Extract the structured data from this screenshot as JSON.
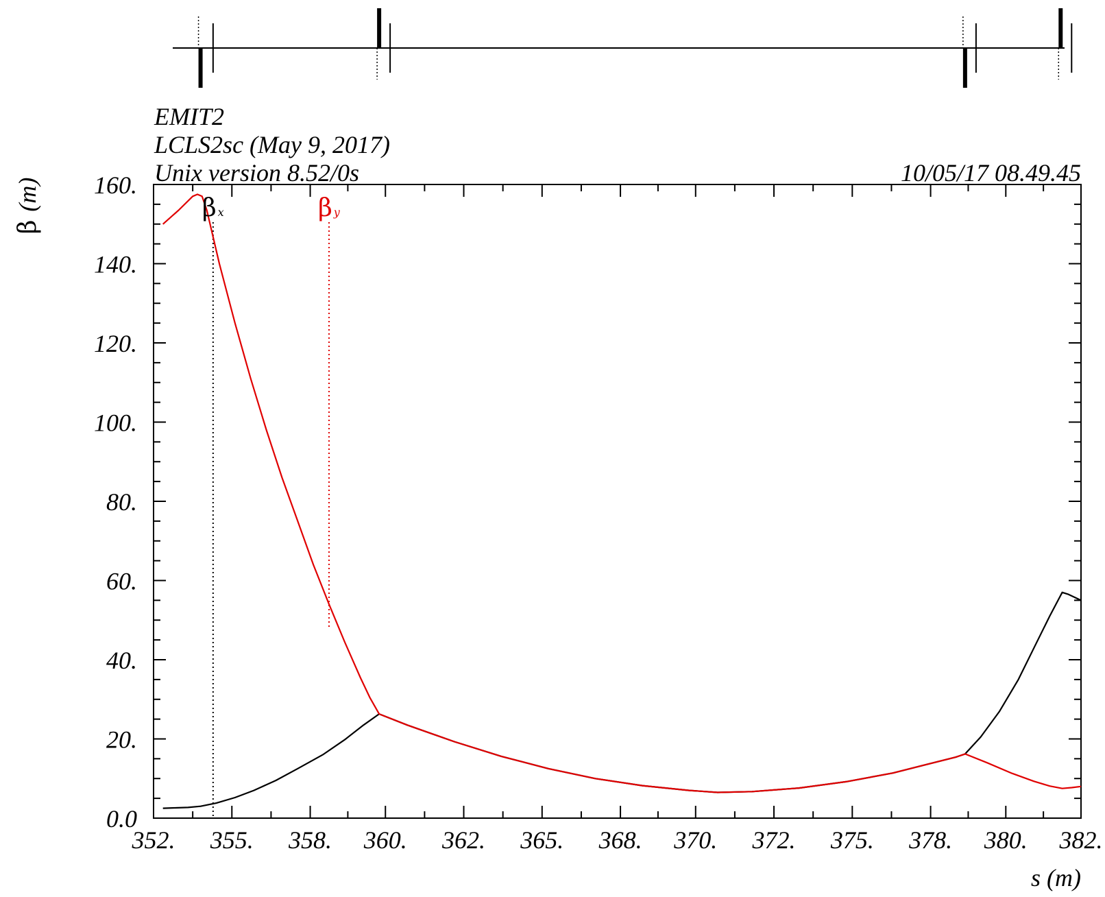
{
  "header": {
    "program": "EMIT2",
    "lattice": "LCLS2sc (May 9, 2017)",
    "version": "Unix version 8.52/0s",
    "timestamp": "10/05/17  08.49.45"
  },
  "chart_data": {
    "type": "line",
    "xlabel": "s (m)",
    "ylabel_symbol": "β",
    "ylabel_unit": "(m)",
    "xlim": [
      352.4,
      382.0
    ],
    "ylim": [
      0,
      160
    ],
    "x_tick_values": [
      352.4,
      354.9,
      357.4,
      359.8,
      362.3,
      364.8,
      367.3,
      369.7,
      372.2,
      374.7,
      377.2,
      379.6,
      382.0
    ],
    "x_tick_labels": [
      "352.",
      "355.",
      "358.",
      "360.",
      "362.",
      "365.",
      "368.",
      "370.",
      "372.",
      "375.",
      "378.",
      "380.",
      "382."
    ],
    "y_tick_values": [
      0,
      20,
      40,
      60,
      80,
      100,
      120,
      140,
      160
    ],
    "y_tick_labels": [
      "0.0",
      "20.",
      "40.",
      "60.",
      "80.",
      "100.",
      "120.",
      "140.",
      "160."
    ],
    "legend": [
      {
        "symbol": "β",
        "sub": "x",
        "color": "#000000",
        "marker_x": 354.3
      },
      {
        "symbol": "β",
        "sub": "y",
        "color": "#e00000",
        "marker_x": 358.0
      }
    ],
    "series": [
      {
        "key": "beta_x",
        "color": "#000000",
        "points": [
          [
            352.7,
            2.5
          ],
          [
            353.1,
            2.6
          ],
          [
            353.5,
            2.7
          ],
          [
            353.9,
            3.0
          ],
          [
            354.4,
            3.8
          ],
          [
            355.0,
            5.2
          ],
          [
            355.6,
            7.0
          ],
          [
            356.3,
            9.5
          ],
          [
            357.0,
            12.5
          ],
          [
            357.8,
            16.0
          ],
          [
            358.5,
            19.8
          ],
          [
            359.1,
            23.5
          ],
          [
            359.6,
            26.3
          ],
          [
            360.5,
            23.5
          ],
          [
            362.0,
            19.3
          ],
          [
            363.5,
            15.6
          ],
          [
            365.0,
            12.5
          ],
          [
            366.5,
            10.0
          ],
          [
            368.0,
            8.2
          ],
          [
            369.5,
            7.0
          ],
          [
            370.4,
            6.5
          ],
          [
            371.5,
            6.7
          ],
          [
            373.0,
            7.6
          ],
          [
            374.5,
            9.2
          ],
          [
            376.0,
            11.4
          ],
          [
            377.0,
            13.4
          ],
          [
            378.0,
            15.4
          ],
          [
            378.3,
            16.2
          ],
          [
            378.8,
            20.5
          ],
          [
            379.4,
            27.0
          ],
          [
            380.0,
            35.0
          ],
          [
            380.5,
            43.0
          ],
          [
            381.0,
            51.0
          ],
          [
            381.3,
            55.5
          ],
          [
            381.4,
            57.0
          ],
          [
            381.6,
            56.5
          ],
          [
            382.0,
            55.0
          ]
        ]
      },
      {
        "key": "beta_y",
        "color": "#e00000",
        "points": [
          [
            352.7,
            150.0
          ],
          [
            353.2,
            153.5
          ],
          [
            353.65,
            157.0
          ],
          [
            353.8,
            157.5
          ],
          [
            353.95,
            157.0
          ],
          [
            354.1,
            153.5
          ],
          [
            354.5,
            140.0
          ],
          [
            355.0,
            125.0
          ],
          [
            355.5,
            111.0
          ],
          [
            356.0,
            98.0
          ],
          [
            356.5,
            86.0
          ],
          [
            357.0,
            75.0
          ],
          [
            357.5,
            64.0
          ],
          [
            358.0,
            54.0
          ],
          [
            358.5,
            44.5
          ],
          [
            359.0,
            35.5
          ],
          [
            359.3,
            30.5
          ],
          [
            359.6,
            26.3
          ],
          [
            360.5,
            23.5
          ],
          [
            362.0,
            19.3
          ],
          [
            363.5,
            15.6
          ],
          [
            365.0,
            12.5
          ],
          [
            366.5,
            10.0
          ],
          [
            368.0,
            8.2
          ],
          [
            369.5,
            7.0
          ],
          [
            370.4,
            6.5
          ],
          [
            371.5,
            6.7
          ],
          [
            373.0,
            7.6
          ],
          [
            374.5,
            9.2
          ],
          [
            376.0,
            11.4
          ],
          [
            377.0,
            13.4
          ],
          [
            378.0,
            15.4
          ],
          [
            378.3,
            16.2
          ],
          [
            379.0,
            14.0
          ],
          [
            379.8,
            11.3
          ],
          [
            380.5,
            9.3
          ],
          [
            381.0,
            8.1
          ],
          [
            381.4,
            7.5
          ],
          [
            381.7,
            7.7
          ],
          [
            382.0,
            8.0
          ]
        ]
      }
    ]
  },
  "lattice_elements": [
    {
      "kind": "dot",
      "s": 353.9,
      "side": "up"
    },
    {
      "kind": "quad",
      "s": 353.9,
      "side": "down"
    },
    {
      "kind": "bpm",
      "s": 354.3
    },
    {
      "kind": "dot",
      "s": 359.6,
      "side": "down"
    },
    {
      "kind": "quad",
      "s": 359.6,
      "side": "up"
    },
    {
      "kind": "bpm",
      "s": 359.95
    },
    {
      "kind": "dot",
      "s": 378.3,
      "side": "up"
    },
    {
      "kind": "quad",
      "s": 378.3,
      "side": "down"
    },
    {
      "kind": "bpm",
      "s": 378.65
    },
    {
      "kind": "dot",
      "s": 381.35,
      "side": "down"
    },
    {
      "kind": "quad",
      "s": 381.35,
      "side": "up"
    },
    {
      "kind": "bpm",
      "s": 381.7
    }
  ]
}
